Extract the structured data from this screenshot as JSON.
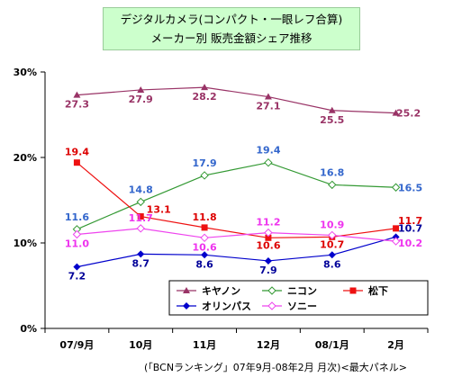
{
  "header": {
    "title_line1": "デジタルカメラ(コンパクト・一眼レフ合算)",
    "title_line2": "メーカー別 販売金額シェア推移"
  },
  "footer": {
    "source": "(「BCNランキング」07年9月-08年2月 月次)<最大パネル>"
  },
  "chart_data": {
    "type": "line",
    "title": "デジタルカメラ(コンパクト・一眼レフ合算) メーカー別 販売金額シェア推移",
    "categories": [
      "07/9月",
      "10月",
      "11月",
      "12月",
      "08/1月",
      "2月"
    ],
    "y_ticks": [
      "0%",
      "10%",
      "20%",
      "30%"
    ],
    "ylim": [
      0,
      30
    ],
    "grid": false,
    "legend_position": "bottom-right",
    "series": [
      {
        "name": "キヤノン",
        "values": [
          27.3,
          27.9,
          28.2,
          27.1,
          25.5,
          25.2
        ],
        "labels": [
          "27.3",
          "27.9",
          "28.2",
          "27.1",
          "25.5",
          "25.2"
        ],
        "color": "#993366",
        "label_color": "#993366",
        "marker": "triangle"
      },
      {
        "name": "ニコン",
        "values": [
          11.6,
          14.8,
          17.9,
          19.4,
          16.8,
          16.5
        ],
        "labels": [
          "11.6",
          "14.8",
          "17.9",
          "19.4",
          "16.8",
          "16.5"
        ],
        "color": "#339933",
        "label_color": "#3366cc",
        "marker": "diamond-open"
      },
      {
        "name": "松下",
        "values": [
          19.4,
          13.1,
          11.8,
          10.6,
          10.7,
          11.7
        ],
        "labels": [
          "19.4",
          "13.1",
          "11.8",
          "10.6",
          "10.7",
          "11.7"
        ],
        "color": "#ee1111",
        "label_color": "#dd0000",
        "marker": "square"
      },
      {
        "name": "オリンパス",
        "values": [
          7.2,
          8.7,
          8.6,
          7.9,
          8.6,
          10.7
        ],
        "labels": [
          "7.2",
          "8.7",
          "8.6",
          "7.9",
          "8.6",
          "10.7"
        ],
        "color": "#0000cc",
        "label_color": "#000099",
        "marker": "diamond"
      },
      {
        "name": "ソニー",
        "values": [
          11.0,
          11.7,
          10.6,
          11.2,
          10.9,
          10.2
        ],
        "labels": [
          "11.0",
          "11.7",
          "10.6",
          "11.2",
          "10.9",
          "10.2"
        ],
        "color": "#ee44ee",
        "label_color": "#ee33ee",
        "marker": "diamond-open"
      }
    ]
  }
}
